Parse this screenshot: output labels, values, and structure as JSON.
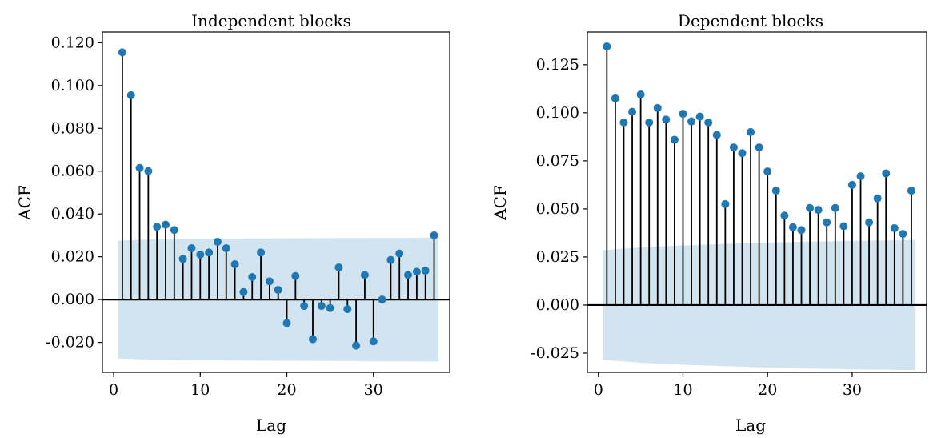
{
  "chart_data": [
    {
      "type": "stem",
      "title": "Independent blocks",
      "xlabel": "Lag",
      "ylabel": "ACF",
      "xlim": [
        -1.3,
        38.8
      ],
      "ylim": [
        -0.034,
        0.125
      ],
      "xticks": [
        0,
        10,
        20,
        30
      ],
      "xtick_labels": [
        "0",
        "10",
        "20",
        "30"
      ],
      "yticks": [
        -0.02,
        0.0,
        0.02,
        0.04,
        0.06,
        0.08,
        0.1,
        0.12
      ],
      "ytick_labels": [
        "-0.020",
        "0.000",
        "0.020",
        "0.040",
        "0.060",
        "0.080",
        "0.100",
        "0.120"
      ],
      "lags": [
        1,
        2,
        3,
        4,
        5,
        6,
        7,
        8,
        9,
        10,
        11,
        12,
        13,
        14,
        15,
        16,
        17,
        18,
        19,
        20,
        21,
        22,
        23,
        24,
        25,
        26,
        27,
        28,
        29,
        30,
        31,
        32,
        33,
        34,
        35,
        36,
        37
      ],
      "values": [
        0.1155,
        0.0955,
        0.0615,
        0.06,
        0.034,
        0.035,
        0.0325,
        0.019,
        0.024,
        0.021,
        0.022,
        0.027,
        0.024,
        0.0165,
        0.0035,
        0.0105,
        0.022,
        0.0085,
        0.0045,
        -0.011,
        0.011,
        -0.003,
        -0.0185,
        -0.003,
        -0.004,
        0.015,
        -0.0045,
        -0.0215,
        0.0115,
        -0.0195,
        0.0,
        0.0185,
        0.0215,
        0.0115,
        0.013,
        0.0135,
        0.03
      ],
      "confidence_band": {
        "x": [
          0.5,
          5,
          10,
          15,
          20,
          25,
          30,
          37.5
        ],
        "upper": [
          0.0275,
          0.0282,
          0.0284,
          0.0285,
          0.0286,
          0.0287,
          0.0288,
          0.0289
        ],
        "lower": [
          -0.0275,
          -0.0282,
          -0.0284,
          -0.0285,
          -0.0286,
          -0.0287,
          -0.0288,
          -0.0289
        ]
      },
      "colors": {
        "marker": "#1f77b4",
        "band": "#1f77b4",
        "stem": "#000000"
      }
    },
    {
      "type": "stem",
      "title": "Dependent blocks",
      "xlabel": "Lag",
      "ylabel": "ACF",
      "xlim": [
        -1.3,
        38.8
      ],
      "ylim": [
        -0.035,
        0.142
      ],
      "xticks": [
        0,
        10,
        20,
        30
      ],
      "xtick_labels": [
        "0",
        "10",
        "20",
        "30"
      ],
      "yticks": [
        -0.025,
        0.0,
        0.025,
        0.05,
        0.075,
        0.1,
        0.125
      ],
      "ytick_labels": [
        "-0.025",
        "0.000",
        "0.025",
        "0.050",
        "0.075",
        "0.100",
        "0.125"
      ],
      "lags": [
        1,
        2,
        3,
        4,
        5,
        6,
        7,
        8,
        9,
        10,
        11,
        12,
        13,
        14,
        15,
        16,
        17,
        18,
        19,
        20,
        21,
        22,
        23,
        24,
        25,
        26,
        27,
        28,
        29,
        30,
        31,
        32,
        33,
        34,
        35,
        36,
        37
      ],
      "values": [
        0.1345,
        0.1075,
        0.095,
        0.1005,
        0.1095,
        0.095,
        0.1025,
        0.0965,
        0.086,
        0.0995,
        0.0955,
        0.098,
        0.095,
        0.0885,
        0.0525,
        0.082,
        0.079,
        0.09,
        0.082,
        0.0695,
        0.0595,
        0.0465,
        0.0405,
        0.039,
        0.0505,
        0.0495,
        0.043,
        0.0505,
        0.041,
        0.0625,
        0.067,
        0.043,
        0.0555,
        0.0685,
        0.04,
        0.037,
        0.0595
      ],
      "confidence_band": {
        "x": [
          0.5,
          5,
          10,
          15,
          20,
          25,
          30,
          37.5
        ],
        "upper": [
          0.0285,
          0.03,
          0.031,
          0.0318,
          0.0325,
          0.033,
          0.0334,
          0.0338
        ],
        "lower": [
          -0.0285,
          -0.03,
          -0.031,
          -0.0318,
          -0.0325,
          -0.033,
          -0.0334,
          -0.0338
        ]
      },
      "colors": {
        "marker": "#1f77b4",
        "band": "#1f77b4",
        "stem": "#000000"
      }
    }
  ]
}
